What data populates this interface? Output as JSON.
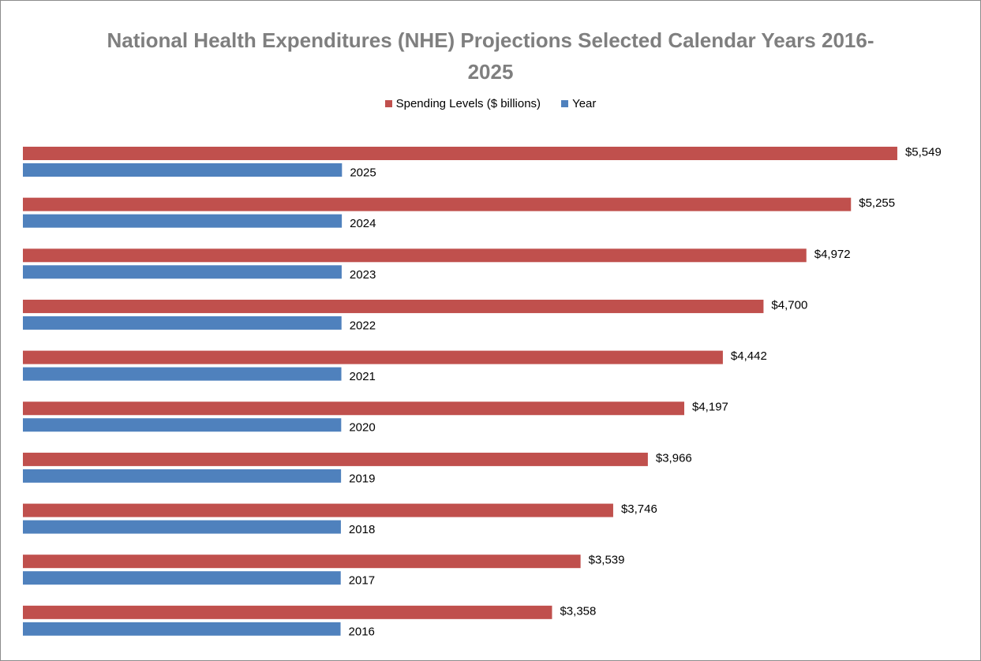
{
  "chart_data": {
    "type": "hbar",
    "title": "National Health Expenditures (NHE) Projections Selected Calendar Years 2016-2025",
    "series": [
      {
        "name": "Spending Levels ($ billions)",
        "color": "#c0504d",
        "values": [
          5549,
          5255,
          4972,
          4700,
          4442,
          4197,
          3966,
          3746,
          3539,
          3358
        ],
        "value_labels": [
          "$5,549",
          "$5,255",
          "$4,972",
          "$4,700",
          "$4,442",
          "$4,197",
          "$3,966",
          "$3,746",
          "$3,539",
          "$3,358"
        ]
      },
      {
        "name": "Year",
        "color": "#4f81bd",
        "values": [
          2025,
          2024,
          2023,
          2022,
          2021,
          2020,
          2019,
          2018,
          2017,
          2016
        ]
      }
    ],
    "xlim": [
      0,
      6000
    ],
    "legend": "top"
  }
}
